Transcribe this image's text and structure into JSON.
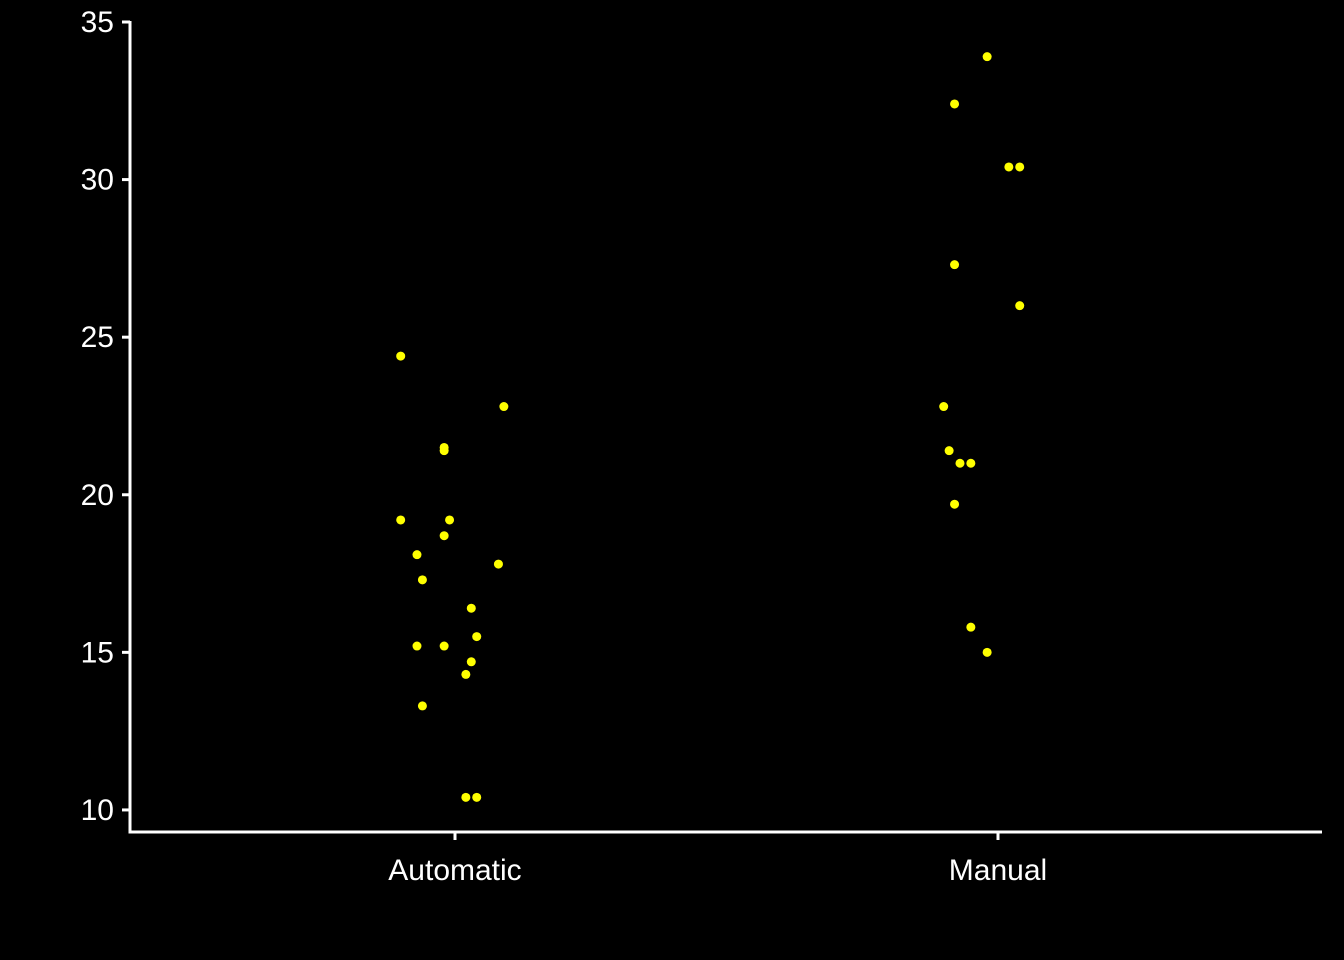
{
  "chart_data": {
    "type": "scatter",
    "categories": [
      "Automatic",
      "Manual"
    ],
    "title": "",
    "xlabel": "",
    "ylabel": "",
    "ylim": [
      9.3,
      35
    ],
    "y_ticks": [
      10,
      15,
      20,
      25,
      30,
      35
    ],
    "grid": false,
    "legend": "none",
    "point_color": "#ffff00",
    "background_color": "#000000",
    "axis_color": "#ffffff",
    "series": [
      {
        "category": "Automatic",
        "points": [
          {
            "jitter": -0.1,
            "y": 24.4
          },
          {
            "jitter": 0.09,
            "y": 22.8
          },
          {
            "jitter": -0.02,
            "y": 21.5
          },
          {
            "jitter": -0.02,
            "y": 21.4
          },
          {
            "jitter": -0.1,
            "y": 19.2
          },
          {
            "jitter": -0.01,
            "y": 19.2
          },
          {
            "jitter": -0.02,
            "y": 18.7
          },
          {
            "jitter": -0.07,
            "y": 18.1
          },
          {
            "jitter": 0.08,
            "y": 17.8
          },
          {
            "jitter": -0.06,
            "y": 17.3
          },
          {
            "jitter": 0.03,
            "y": 16.4
          },
          {
            "jitter": 0.04,
            "y": 15.5
          },
          {
            "jitter": -0.07,
            "y": 15.2
          },
          {
            "jitter": -0.02,
            "y": 15.2
          },
          {
            "jitter": 0.03,
            "y": 14.7
          },
          {
            "jitter": 0.02,
            "y": 14.3
          },
          {
            "jitter": -0.06,
            "y": 13.3
          },
          {
            "jitter": 0.02,
            "y": 10.4
          },
          {
            "jitter": 0.04,
            "y": 10.4
          }
        ]
      },
      {
        "category": "Manual",
        "points": [
          {
            "jitter": -0.02,
            "y": 33.9
          },
          {
            "jitter": -0.08,
            "y": 32.4
          },
          {
            "jitter": 0.02,
            "y": 30.4
          },
          {
            "jitter": 0.04,
            "y": 30.4
          },
          {
            "jitter": -0.08,
            "y": 27.3
          },
          {
            "jitter": 0.04,
            "y": 26.0
          },
          {
            "jitter": -0.1,
            "y": 22.8
          },
          {
            "jitter": -0.09,
            "y": 21.4
          },
          {
            "jitter": -0.07,
            "y": 21.0
          },
          {
            "jitter": -0.05,
            "y": 21.0
          },
          {
            "jitter": -0.08,
            "y": 19.7
          },
          {
            "jitter": -0.05,
            "y": 15.8
          },
          {
            "jitter": -0.02,
            "y": 15.0
          }
        ]
      }
    ]
  }
}
